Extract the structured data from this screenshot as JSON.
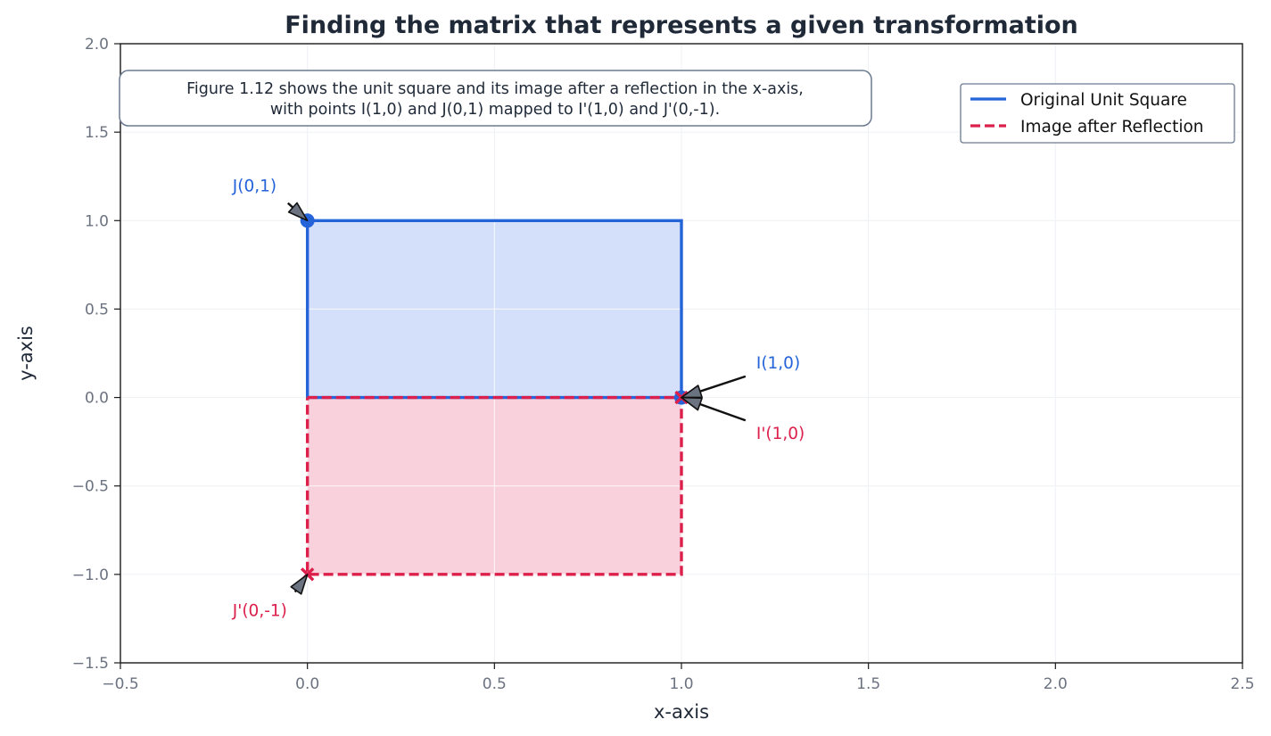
{
  "chart_data": {
    "type": "line",
    "title": "Finding the matrix that represents a given transformation",
    "xlabel": "x-axis",
    "ylabel": "y-axis",
    "xlim": [
      -0.5,
      2.5
    ],
    "ylim": [
      -1.5,
      2.0
    ],
    "xticks": [
      -0.5,
      0.0,
      0.5,
      1.0,
      1.5,
      2.0,
      2.5
    ],
    "yticks": [
      -1.5,
      -1.0,
      -0.5,
      0.0,
      0.5,
      1.0,
      1.5,
      2.0
    ],
    "xtick_labels": [
      "−0.5",
      "0.0",
      "0.5",
      "1.0",
      "1.5",
      "2.0",
      "2.5"
    ],
    "ytick_labels": [
      "−1.5",
      "−1.0",
      "−0.5",
      "0.0",
      "0.5",
      "1.0",
      "1.5",
      "2.0"
    ],
    "grid": true,
    "legend_position": "top-right",
    "note_lines": [
      "Figure 1.12 shows the unit square and its image after a reflection in the x-axis,",
      "with points I(1,0) and J(0,1) mapped to I'(1,0) and J'(0,-1)."
    ],
    "series": [
      {
        "name": "Original Unit Square",
        "style": "solid",
        "color": "#2563d9",
        "fill": "#d4dffa",
        "x": [
          0,
          1,
          1,
          0,
          0
        ],
        "y": [
          0,
          0,
          1,
          1,
          0
        ]
      },
      {
        "name": "Image after Reflection",
        "style": "dashed",
        "color": "#dc1f4b",
        "fill": "#f8d1dc",
        "x": [
          0,
          1,
          1,
          0,
          0
        ],
        "y": [
          0,
          0,
          -1,
          -1,
          0
        ]
      }
    ],
    "points": [
      {
        "label": "I(1,0)",
        "x": 1,
        "y": 0,
        "marker": "circle",
        "color": "#2563d9",
        "text_x": 1.2,
        "text_y": 0.2
      },
      {
        "label": "J(0,1)",
        "x": 0,
        "y": 1,
        "marker": "circle",
        "color": "#2563d9",
        "text_x": -0.2,
        "text_y": 1.2
      },
      {
        "label": "I'(1,0)",
        "x": 1,
        "y": 0,
        "marker": "x",
        "color": "#dc1f4b",
        "text_x": 1.2,
        "text_y": -0.2
      },
      {
        "label": "J'(0,-1)",
        "x": 0,
        "y": -1,
        "marker": "x",
        "color": "#dc1f4b",
        "text_x": -0.2,
        "text_y": -1.2
      }
    ]
  }
}
